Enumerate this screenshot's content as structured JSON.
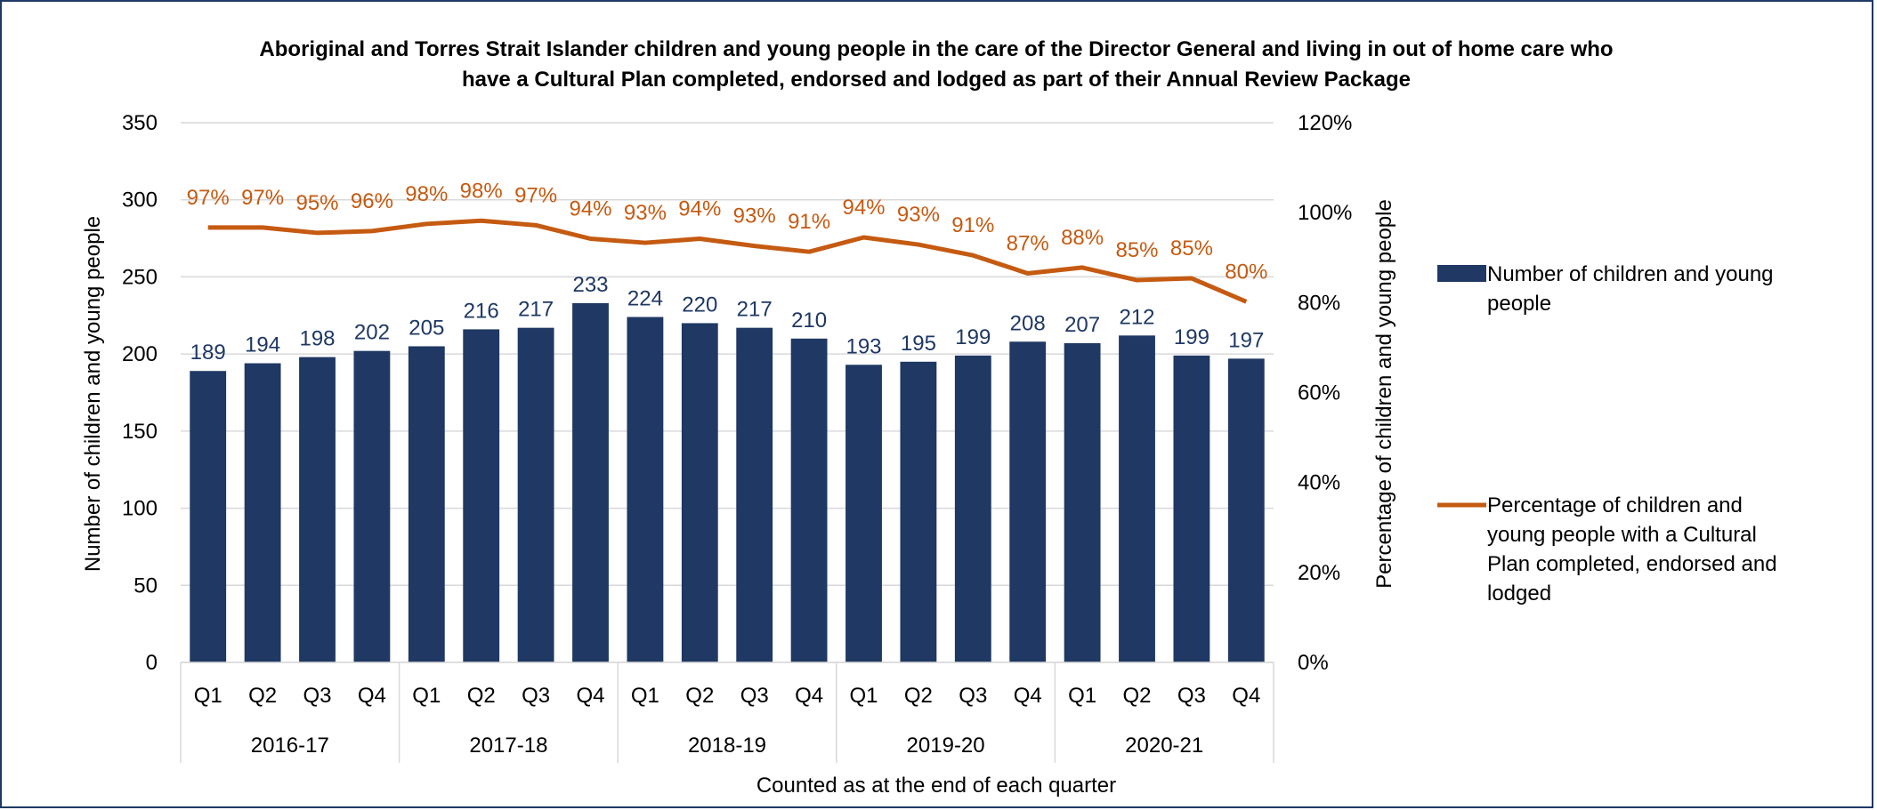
{
  "chart_data": {
    "type": "bar",
    "title_line1": "Aboriginal and Torres Strait Islander children and young people in the care of the Director General and living in out of home care who",
    "title_line2": "have a Cultural Plan completed, endorsed and lodged as part of their Annual Review Package",
    "xlabel": "Counted as at the end of each quarter",
    "ylabel_left": "Number of children and young people",
    "ylabel_right": "Percentage of children and young people",
    "groups": [
      "2016-17",
      "2017-18",
      "2018-19",
      "2019-20",
      "2020-21"
    ],
    "quarters": [
      "Q1",
      "Q2",
      "Q3",
      "Q4"
    ],
    "left_axis": {
      "min": 0,
      "max": 350,
      "ticks": [
        "0",
        "50",
        "100",
        "150",
        "200",
        "250",
        "300",
        "350"
      ]
    },
    "right_axis": {
      "min": 0,
      "max": 1.2,
      "ticks": [
        "0%",
        "20%",
        "40%",
        "60%",
        "80%",
        "100%",
        "120%"
      ]
    },
    "grid": true,
    "legend_position": "right",
    "series": [
      {
        "name": "Number of children and young people",
        "name_lines": [
          "Number of children and young",
          "people"
        ],
        "type": "bar",
        "axis": "left",
        "color": "#1f3864",
        "values": [
          189,
          194,
          198,
          202,
          205,
          216,
          217,
          233,
          224,
          220,
          217,
          210,
          193,
          195,
          199,
          208,
          207,
          212,
          199,
          197
        ],
        "labels": [
          "189",
          "194",
          "198",
          "202",
          "205",
          "216",
          "217",
          "233",
          "224",
          "220",
          "217",
          "210",
          "193",
          "195",
          "199",
          "208",
          "207",
          "212",
          "199",
          "197"
        ]
      },
      {
        "name": "Percentage of children and young people with a Cultural Plan completed, endorsed and lodged",
        "name_lines": [
          "Percentage of children and",
          "young people with a Cultural",
          "Plan completed, endorsed and",
          "lodged"
        ],
        "type": "line",
        "axis": "right",
        "color": "#c55a11",
        "values": [
          0.97,
          0.97,
          0.95,
          0.96,
          0.98,
          0.98,
          0.97,
          0.94,
          0.93,
          0.94,
          0.93,
          0.91,
          0.94,
          0.93,
          0.91,
          0.87,
          0.88,
          0.85,
          0.85,
          0.8
        ],
        "plot_values": [
          0.967,
          0.967,
          0.955,
          0.959,
          0.975,
          0.982,
          0.972,
          0.942,
          0.933,
          0.942,
          0.926,
          0.913,
          0.945,
          0.929,
          0.905,
          0.865,
          0.878,
          0.85,
          0.854,
          0.802
        ],
        "labels": [
          "97%",
          "97%",
          "95%",
          "96%",
          "98%",
          "98%",
          "97%",
          "94%",
          "93%",
          "94%",
          "93%",
          "91%",
          "94%",
          "93%",
          "91%",
          "87%",
          "88%",
          "85%",
          "85%",
          "80%"
        ]
      }
    ]
  }
}
